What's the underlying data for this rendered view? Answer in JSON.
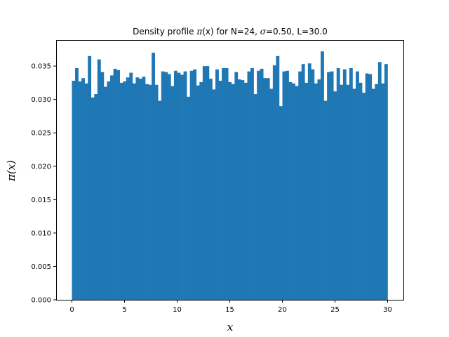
{
  "chart_data": {
    "type": "bar",
    "title_parts": {
      "prefix": "Density profile ",
      "pi_symbol": "π",
      "pi_arg": "(x)",
      "mid": " for N=24, ",
      "sigma_symbol": "σ",
      "suffix": "=0.50, L=30.0"
    },
    "xlabel": "x",
    "ylabel_parts": {
      "pi_symbol": "π",
      "arg": "(x)"
    },
    "xlim": [
      -1.5,
      31.5
    ],
    "ylim": [
      0.0,
      0.0389
    ],
    "x_ticks": [
      0,
      5,
      10,
      15,
      20,
      25,
      30
    ],
    "x_tick_labels": [
      "0",
      "5",
      "10",
      "15",
      "20",
      "25",
      "30"
    ],
    "y_ticks": [
      0.0,
      0.005,
      0.01,
      0.015,
      0.02,
      0.025,
      0.03,
      0.035
    ],
    "y_tick_labels": [
      "0.000",
      "0.005",
      "0.010",
      "0.015",
      "0.020",
      "0.025",
      "0.030",
      "0.035"
    ],
    "bin_start": 0,
    "bin_end": 30,
    "values": [
      0.0328,
      0.0347,
      0.0327,
      0.0332,
      0.0324,
      0.0365,
      0.0303,
      0.0308,
      0.036,
      0.0341,
      0.0319,
      0.0327,
      0.0336,
      0.0346,
      0.0344,
      0.0325,
      0.0327,
      0.0333,
      0.034,
      0.0324,
      0.0333,
      0.0331,
      0.0334,
      0.0323,
      0.0322,
      0.037,
      0.0322,
      0.0298,
      0.0342,
      0.0341,
      0.0338,
      0.032,
      0.0343,
      0.034,
      0.0337,
      0.0342,
      0.0304,
      0.0343,
      0.0345,
      0.0321,
      0.0326,
      0.035,
      0.035,
      0.0331,
      0.0315,
      0.0345,
      0.0328,
      0.0347,
      0.0347,
      0.0326,
      0.0323,
      0.0341,
      0.033,
      0.0329,
      0.0325,
      0.0342,
      0.0347,
      0.0308,
      0.0343,
      0.0346,
      0.0332,
      0.0332,
      0.0316,
      0.0351,
      0.0365,
      0.029,
      0.0342,
      0.0343,
      0.0326,
      0.0324,
      0.032,
      0.0342,
      0.0353,
      0.0325,
      0.0354,
      0.0345,
      0.0324,
      0.033,
      0.0372,
      0.0298,
      0.0341,
      0.0342,
      0.0312,
      0.0347,
      0.0322,
      0.0345,
      0.0322,
      0.0347,
      0.0316,
      0.0342,
      0.0325,
      0.031,
      0.0339,
      0.0338,
      0.0316,
      0.0323,
      0.0356,
      0.0324,
      0.0353
    ],
    "bar_color": "#1f77b4",
    "grid": false
  }
}
